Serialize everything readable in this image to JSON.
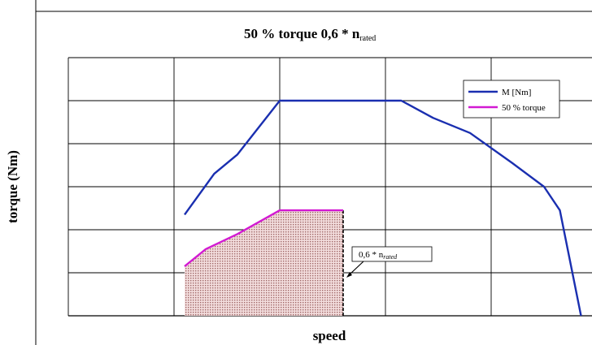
{
  "chart_data": {
    "type": "line",
    "title_main": "50 % torque 0,6 * n",
    "title_subscript": "rated",
    "xlabel": "speed",
    "ylabel": "torque (Nm)",
    "xlim": [
      0,
      5
    ],
    "ylim": [
      0,
      5
    ],
    "grid": true,
    "legend_position": "top-right",
    "series": [
      {
        "name": "M [Nm]",
        "color": "#1a2fb0",
        "x": [
          1.1,
          1.38,
          1.6,
          2.0,
          3.15,
          3.45,
          3.8,
          4.2,
          4.5,
          4.65,
          4.85
        ],
        "y": [
          2.35,
          3.3,
          3.75,
          5.0,
          5.0,
          4.6,
          4.25,
          3.55,
          3.0,
          2.45,
          0.0
        ]
      },
      {
        "name": "50 % torque",
        "color": "#d21ad2",
        "x": [
          1.1,
          1.3,
          1.6,
          2.0,
          2.6
        ],
        "y": [
          1.15,
          1.55,
          1.9,
          2.45,
          2.45
        ]
      }
    ],
    "shaded_region": {
      "x": [
        1.1,
        1.3,
        1.6,
        2.0,
        2.6,
        2.6,
        1.1
      ],
      "y": [
        1.15,
        1.55,
        1.9,
        2.45,
        2.45,
        0,
        0
      ]
    },
    "annotation": {
      "text_main": "0,6 * n",
      "text_subscript": "rated",
      "target_x": 2.6,
      "target_y": 0.85
    }
  }
}
